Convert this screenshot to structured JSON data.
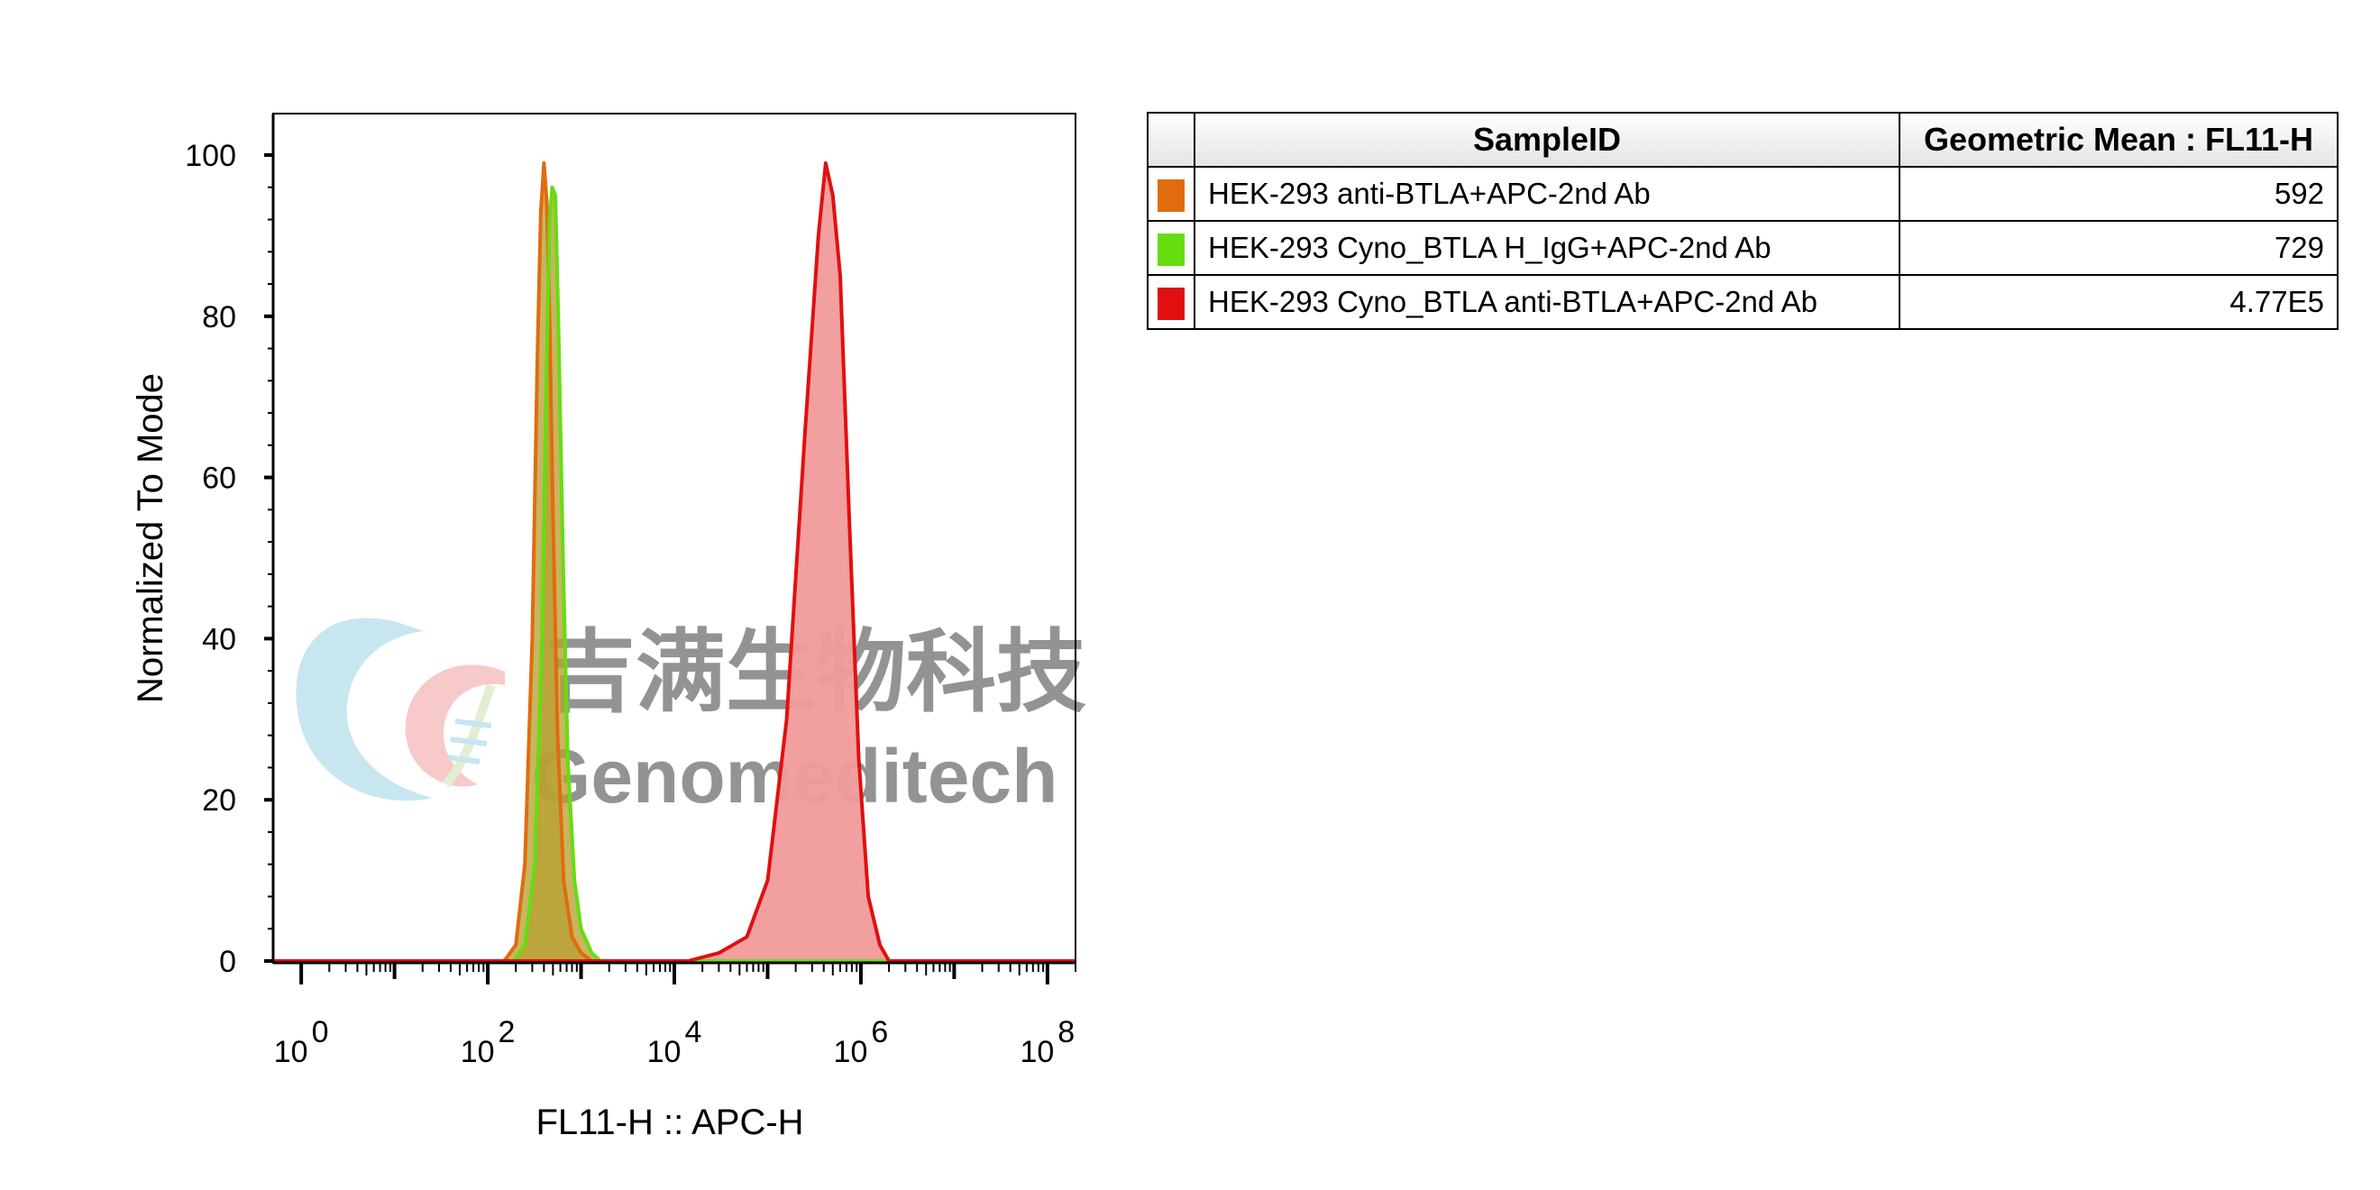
{
  "chart_data": {
    "type": "area",
    "xscale": "log",
    "xlabel": "FL11-H :: APC-H",
    "ylabel": "Normalized To Mode",
    "xlim": [
      0.5,
      200000000
    ],
    "ylim": [
      0,
      100
    ],
    "y_ticks": [
      0,
      20,
      40,
      60,
      80,
      100
    ],
    "x_ticks": [
      {
        "value": 1,
        "base": "10",
        "exp": "0"
      },
      {
        "value": 100,
        "base": "10",
        "exp": "2"
      },
      {
        "value": 10000,
        "base": "10",
        "exp": "4"
      },
      {
        "value": 1000000,
        "base": "10",
        "exp": "6"
      },
      {
        "value": 100000000,
        "base": "10",
        "exp": "8"
      }
    ],
    "series": [
      {
        "name": "HEK-293 anti-BTLA+APC-2nd Ab",
        "color": "#e06c0e",
        "fill": "#b9a033",
        "points": [
          [
            0.5,
            0
          ],
          [
            150,
            0
          ],
          [
            200,
            2
          ],
          [
            250,
            12
          ],
          [
            300,
            40
          ],
          [
            340,
            75
          ],
          [
            370,
            93
          ],
          [
            400,
            99
          ],
          [
            430,
            94
          ],
          [
            460,
            80
          ],
          [
            500,
            55
          ],
          [
            560,
            28
          ],
          [
            650,
            10
          ],
          [
            800,
            3
          ],
          [
            1000,
            1
          ],
          [
            1300,
            0
          ],
          [
            200000000,
            0
          ]
        ]
      },
      {
        "name": "HEK-293 Cyno_BTLA H_IgG+APC-2nd Ab",
        "color": "#66dd11",
        "fill": "#b9a033",
        "points": [
          [
            0.5,
            0
          ],
          [
            190,
            0
          ],
          [
            250,
            2
          ],
          [
            320,
            12
          ],
          [
            380,
            40
          ],
          [
            430,
            75
          ],
          [
            460,
            92
          ],
          [
            490,
            96
          ],
          [
            530,
            95
          ],
          [
            570,
            80
          ],
          [
            640,
            50
          ],
          [
            720,
            25
          ],
          [
            850,
            10
          ],
          [
            1000,
            4
          ],
          [
            1300,
            1
          ],
          [
            1600,
            0
          ],
          [
            200000000,
            0
          ]
        ]
      },
      {
        "name": "HEK-293 Cyno_BTLA anti-BTLA+APC-2nd Ab",
        "color": "#e01010",
        "fill": "#f09a9a",
        "points": [
          [
            0.5,
            0
          ],
          [
            14000,
            0
          ],
          [
            30000,
            1
          ],
          [
            60000,
            3
          ],
          [
            100000,
            10
          ],
          [
            160000,
            30
          ],
          [
            250000,
            65
          ],
          [
            350000,
            90
          ],
          [
            420000,
            99
          ],
          [
            500000,
            95
          ],
          [
            600000,
            85
          ],
          [
            750000,
            55
          ],
          [
            950000,
            25
          ],
          [
            1200000,
            8
          ],
          [
            1600000,
            2
          ],
          [
            2000000,
            0
          ],
          [
            200000000,
            0
          ]
        ]
      }
    ]
  },
  "legend": {
    "headers": {
      "sample": "SampleID",
      "mean": "Geometric Mean : FL11-H"
    },
    "rows": [
      {
        "color": "#e06c0e",
        "sample": "HEK-293 anti-BTLA+APC-2nd Ab",
        "mean": "592"
      },
      {
        "color": "#66dd11",
        "sample": "HEK-293 Cyno_BTLA H_IgG+APC-2nd Ab",
        "mean": "729"
      },
      {
        "color": "#e01010",
        "sample": "HEK-293 Cyno_BTLA anti-BTLA+APC-2nd Ab",
        "mean": "4.77E5"
      }
    ]
  },
  "watermark": {
    "cn": "吉满生物科技",
    "en": "Genomeditech"
  }
}
